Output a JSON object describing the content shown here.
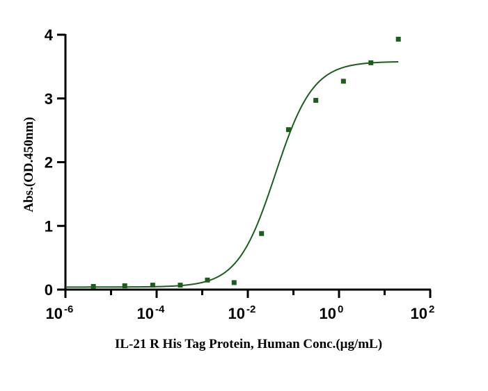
{
  "chart_data": {
    "type": "scatter",
    "xlabel": "IL-21 R His Tag Protein, Human  Conc.(μg/mL)",
    "ylabel": "Abs.(OD.450nm)",
    "xscale": "log10",
    "xlim": [
      1e-06,
      100
    ],
    "ylim": [
      0,
      4
    ],
    "x_ticks": [
      {
        "base": "10",
        "exp": "-6"
      },
      {
        "base": "10",
        "exp": "-4"
      },
      {
        "base": "10",
        "exp": "-2"
      },
      {
        "base": "10",
        "exp": "0"
      },
      {
        "base": "10",
        "exp": "2"
      }
    ],
    "y_ticks": [
      "0",
      "1",
      "2",
      "3",
      "4"
    ],
    "grid": false,
    "colors": {
      "series": "#1a5e1a",
      "axis": "#000000"
    },
    "series": [
      {
        "marker": "square",
        "x": [
          4.1e-06,
          2e-05,
          8.2e-05,
          0.00033,
          0.0013,
          0.005,
          0.02,
          0.078,
          0.31,
          1.25,
          5.0,
          20.0
        ],
        "y": [
          0.05,
          0.06,
          0.07,
          0.07,
          0.15,
          0.11,
          0.88,
          2.51,
          2.97,
          3.27,
          3.56,
          3.93
        ]
      }
    ],
    "fit": {
      "model": "4PL",
      "bottom": 0.04,
      "top": 3.58,
      "ec50": 0.04,
      "hill": 1.05,
      "xrange": [
        1e-06,
        20
      ]
    }
  }
}
